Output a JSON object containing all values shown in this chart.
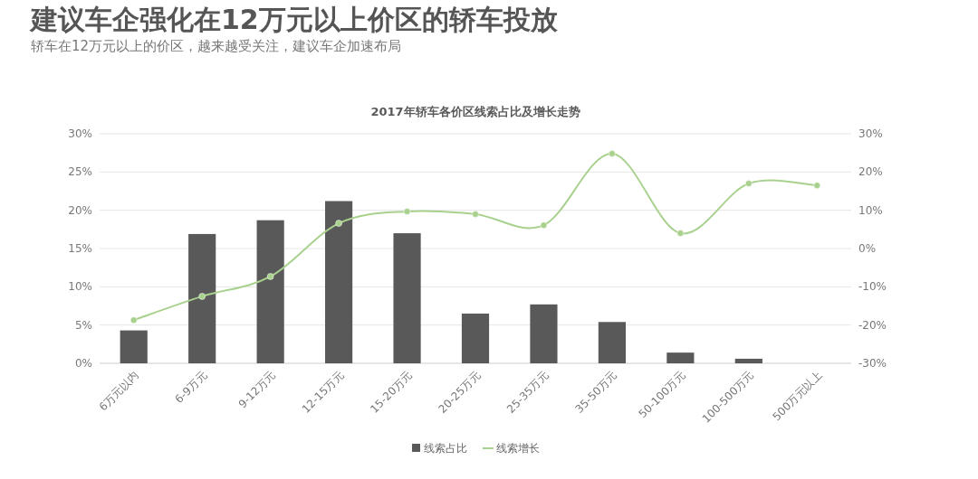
{
  "chart_data": {
    "type": "bar",
    "title": "建议车企强化在12万元以上价区的轿车投放",
    "subtitle": "轿车在12万元以上的价区，越来越受关注，建议车企加速布局",
    "annotations": [
      "2017年轿车各价区线索占比及增长走势"
    ],
    "categories": [
      "6万元以内",
      "6-9万元",
      "9-12万元",
      "12-15万元",
      "15-20万元",
      "20-25万元",
      "25-35万元",
      "35-50万元",
      "50-100万元",
      "100-500万元",
      "500万元以上"
    ],
    "series": [
      {
        "name": "线索占比",
        "color": "#595959",
        "values": [
          4.3,
          16.9,
          18.7,
          21.2,
          17.0,
          6.5,
          7.7,
          5.4,
          1.4,
          0.6,
          null
        ]
      },
      {
        "name": "线索增长",
        "type": "line",
        "axis": "y2",
        "color": "#a9d18e",
        "marker": "circle",
        "values": [
          -18.7,
          -12.5,
          -7.3,
          6.6,
          9.7,
          9.0,
          6.1,
          24.8,
          4.0,
          17.0,
          16.5
        ]
      }
    ],
    "ylim": [
      0,
      30
    ],
    "yticks": [
      {
        "value": 0,
        "label": "0%"
      },
      {
        "value": 5,
        "label": "5%"
      },
      {
        "value": 10,
        "label": "10%"
      },
      {
        "value": 15,
        "label": "15%"
      },
      {
        "value": 20,
        "label": "20%"
      },
      {
        "value": 25,
        "label": "25%"
      },
      {
        "value": 30,
        "label": "30%"
      }
    ],
    "y2lim": [
      -30,
      30
    ],
    "y2ticks": [
      {
        "value": -30,
        "label": "-30%"
      },
      {
        "value": -20,
        "label": "-20%"
      },
      {
        "value": -10,
        "label": "-10%"
      },
      {
        "value": 0,
        "label": "0%"
      },
      {
        "value": 10,
        "label": "10%"
      },
      {
        "value": 20,
        "label": "20%"
      },
      {
        "value": 30,
        "label": "30%"
      }
    ],
    "grid": "y",
    "legend": "bottom"
  }
}
